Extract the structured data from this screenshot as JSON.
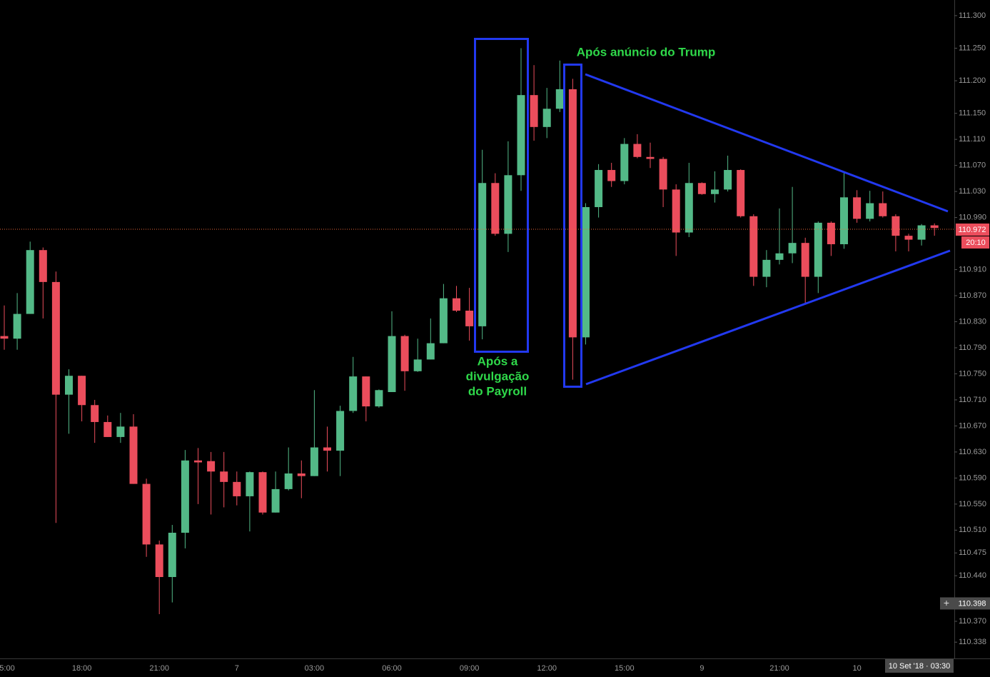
{
  "chart_data": {
    "type": "candlestick",
    "up_color": "#53b987",
    "down_color": "#eb4d5c",
    "x": [
      "5:00",
      null,
      null,
      null,
      null,
      null,
      "18:00",
      null,
      null,
      null,
      null,
      null,
      "21:00",
      null,
      null,
      null,
      null,
      null,
      "7",
      null,
      null,
      null,
      null,
      null,
      "03:00",
      null,
      null,
      null,
      null,
      null,
      "06:00",
      null,
      null,
      null,
      null,
      null,
      "09:00",
      null,
      null,
      null,
      null,
      null,
      "12:00",
      null,
      null,
      null,
      null,
      null,
      "15:00",
      null,
      null,
      null,
      null,
      null,
      "9",
      null,
      null,
      null,
      null,
      null,
      "21:00",
      null,
      null,
      null,
      null,
      null,
      "10",
      null,
      null,
      null,
      null,
      null,
      null
    ],
    "open": [
      110.808,
      110.804,
      110.842,
      110.94,
      110.891,
      110.718,
      110.747,
      110.702,
      110.676,
      110.653,
      110.669,
      110.581,
      110.488,
      110.438,
      110.506,
      110.617,
      110.616,
      110.6,
      110.584,
      110.562,
      110.599,
      110.537,
      110.573,
      110.597,
      110.593,
      110.637,
      110.632,
      110.693,
      110.746,
      110.7,
      110.722,
      110.808,
      110.754,
      110.772,
      110.797,
      110.866,
      110.847,
      110.823,
      111.043,
      110.965,
      111.055,
      111.178,
      111.129,
      111.157,
      111.187,
      110.806,
      111.006,
      111.063,
      111.046,
      111.103,
      111.083,
      111.08,
      111.033,
      110.967,
      111.043,
      111.026,
      111.033,
      111.063,
      110.992,
      110.899,
      110.925,
      110.935,
      110.951,
      110.899,
      110.982,
      110.949,
      111.021,
      110.988,
      111.012,
      110.992,
      110.962,
      110.956,
      110.978
    ],
    "high": [
      110.855,
      110.874,
      110.953,
      110.944,
      110.907,
      110.757,
      110.747,
      110.71,
      110.686,
      110.69,
      110.688,
      110.589,
      110.494,
      110.518,
      110.633,
      110.636,
      110.63,
      110.63,
      110.6,
      110.6,
      110.6,
      110.6,
      110.637,
      110.617,
      110.725,
      110.669,
      110.701,
      110.776,
      110.746,
      110.726,
      110.846,
      110.81,
      110.804,
      110.835,
      110.888,
      110.885,
      110.882,
      111.094,
      111.058,
      111.107,
      111.25,
      111.224,
      111.189,
      111.231,
      111.203,
      111.012,
      111.072,
      111.074,
      111.112,
      111.118,
      111.105,
      111.083,
      111.041,
      111.074,
      111.044,
      111.061,
      111.085,
      111.064,
      110.995,
      110.94,
      111.004,
      111.037,
      110.959,
      110.984,
      110.984,
      111.059,
      111.032,
      111.031,
      111.03,
      110.995,
      110.965,
      110.98,
      110.981
    ],
    "low": [
      110.787,
      110.787,
      110.842,
      110.835,
      110.521,
      110.658,
      110.677,
      110.644,
      110.653,
      110.644,
      110.581,
      110.469,
      110.381,
      110.399,
      110.482,
      110.55,
      110.534,
      110.545,
      110.548,
      110.508,
      110.534,
      110.537,
      110.571,
      110.559,
      110.593,
      110.6,
      110.593,
      110.69,
      110.677,
      110.698,
      110.722,
      110.724,
      110.753,
      110.772,
      110.797,
      110.845,
      110.801,
      110.803,
      110.962,
      110.937,
      111.031,
      111.108,
      111.112,
      111.152,
      110.741,
      110.795,
      110.99,
      111.037,
      111.041,
      111.081,
      111.066,
      111.006,
      110.931,
      110.96,
      111.025,
      111.013,
      111.03,
      110.99,
      110.885,
      110.883,
      110.918,
      110.92,
      110.858,
      110.874,
      110.931,
      110.942,
      110.982,
      110.984,
      110.99,
      110.938,
      110.938,
      110.947,
      110.962
    ],
    "close": [
      110.804,
      110.842,
      110.94,
      110.891,
      110.718,
      110.747,
      110.702,
      110.676,
      110.653,
      110.669,
      110.581,
      110.488,
      110.438,
      110.506,
      110.617,
      110.614,
      110.6,
      110.584,
      110.562,
      110.599,
      110.537,
      110.573,
      110.597,
      110.593,
      110.637,
      110.632,
      110.693,
      110.746,
      110.7,
      110.725,
      110.808,
      110.754,
      110.772,
      110.797,
      110.866,
      110.847,
      110.823,
      111.043,
      110.965,
      111.055,
      111.178,
      111.129,
      111.157,
      111.187,
      110.806,
      111.006,
      111.063,
      111.046,
      111.103,
      111.083,
      111.08,
      111.033,
      110.967,
      111.043,
      111.026,
      111.033,
      111.063,
      110.992,
      110.899,
      110.925,
      110.935,
      110.951,
      110.899,
      110.982,
      110.949,
      111.021,
      110.988,
      111.012,
      110.992,
      110.962,
      110.956,
      110.978,
      110.974
    ],
    "ylim": [
      110.313,
      111.324
    ],
    "yticks": [
      {
        "value": 111.3,
        "label": "111.300"
      },
      {
        "value": 111.25,
        "label": "111.250"
      },
      {
        "value": 111.2,
        "label": "111.200"
      },
      {
        "value": 111.15,
        "label": "111.150"
      },
      {
        "value": 111.11,
        "label": "111.110"
      },
      {
        "value": 111.07,
        "label": "111.070"
      },
      {
        "value": 111.03,
        "label": "111.030"
      },
      {
        "value": 110.99,
        "label": "110.990"
      },
      {
        "value": 110.91,
        "label": "110.910"
      },
      {
        "value": 110.87,
        "label": "110.870"
      },
      {
        "value": 110.83,
        "label": "110.830"
      },
      {
        "value": 110.79,
        "label": "110.790"
      },
      {
        "value": 110.75,
        "label": "110.750"
      },
      {
        "value": 110.71,
        "label": "110.710"
      },
      {
        "value": 110.67,
        "label": "110.670"
      },
      {
        "value": 110.63,
        "label": "110.630"
      },
      {
        "value": 110.59,
        "label": "110.590"
      },
      {
        "value": 110.55,
        "label": "110.550"
      },
      {
        "value": 110.51,
        "label": "110.510"
      },
      110.475,
      {
        "value": 110.44,
        "label": "110.440"
      },
      {
        "value": 110.37,
        "label": "110.370"
      },
      110.338
    ],
    "last_price": 110.972,
    "countdown": "20:10",
    "crosshair": {
      "y": 110.398,
      "x_label": "10 Set '18 · 03:30"
    },
    "annotations": [
      [
        "Após a",
        "divulgação",
        "do Payroll"
      ],
      [
        "Após anúncio do Trump"
      ]
    ]
  }
}
